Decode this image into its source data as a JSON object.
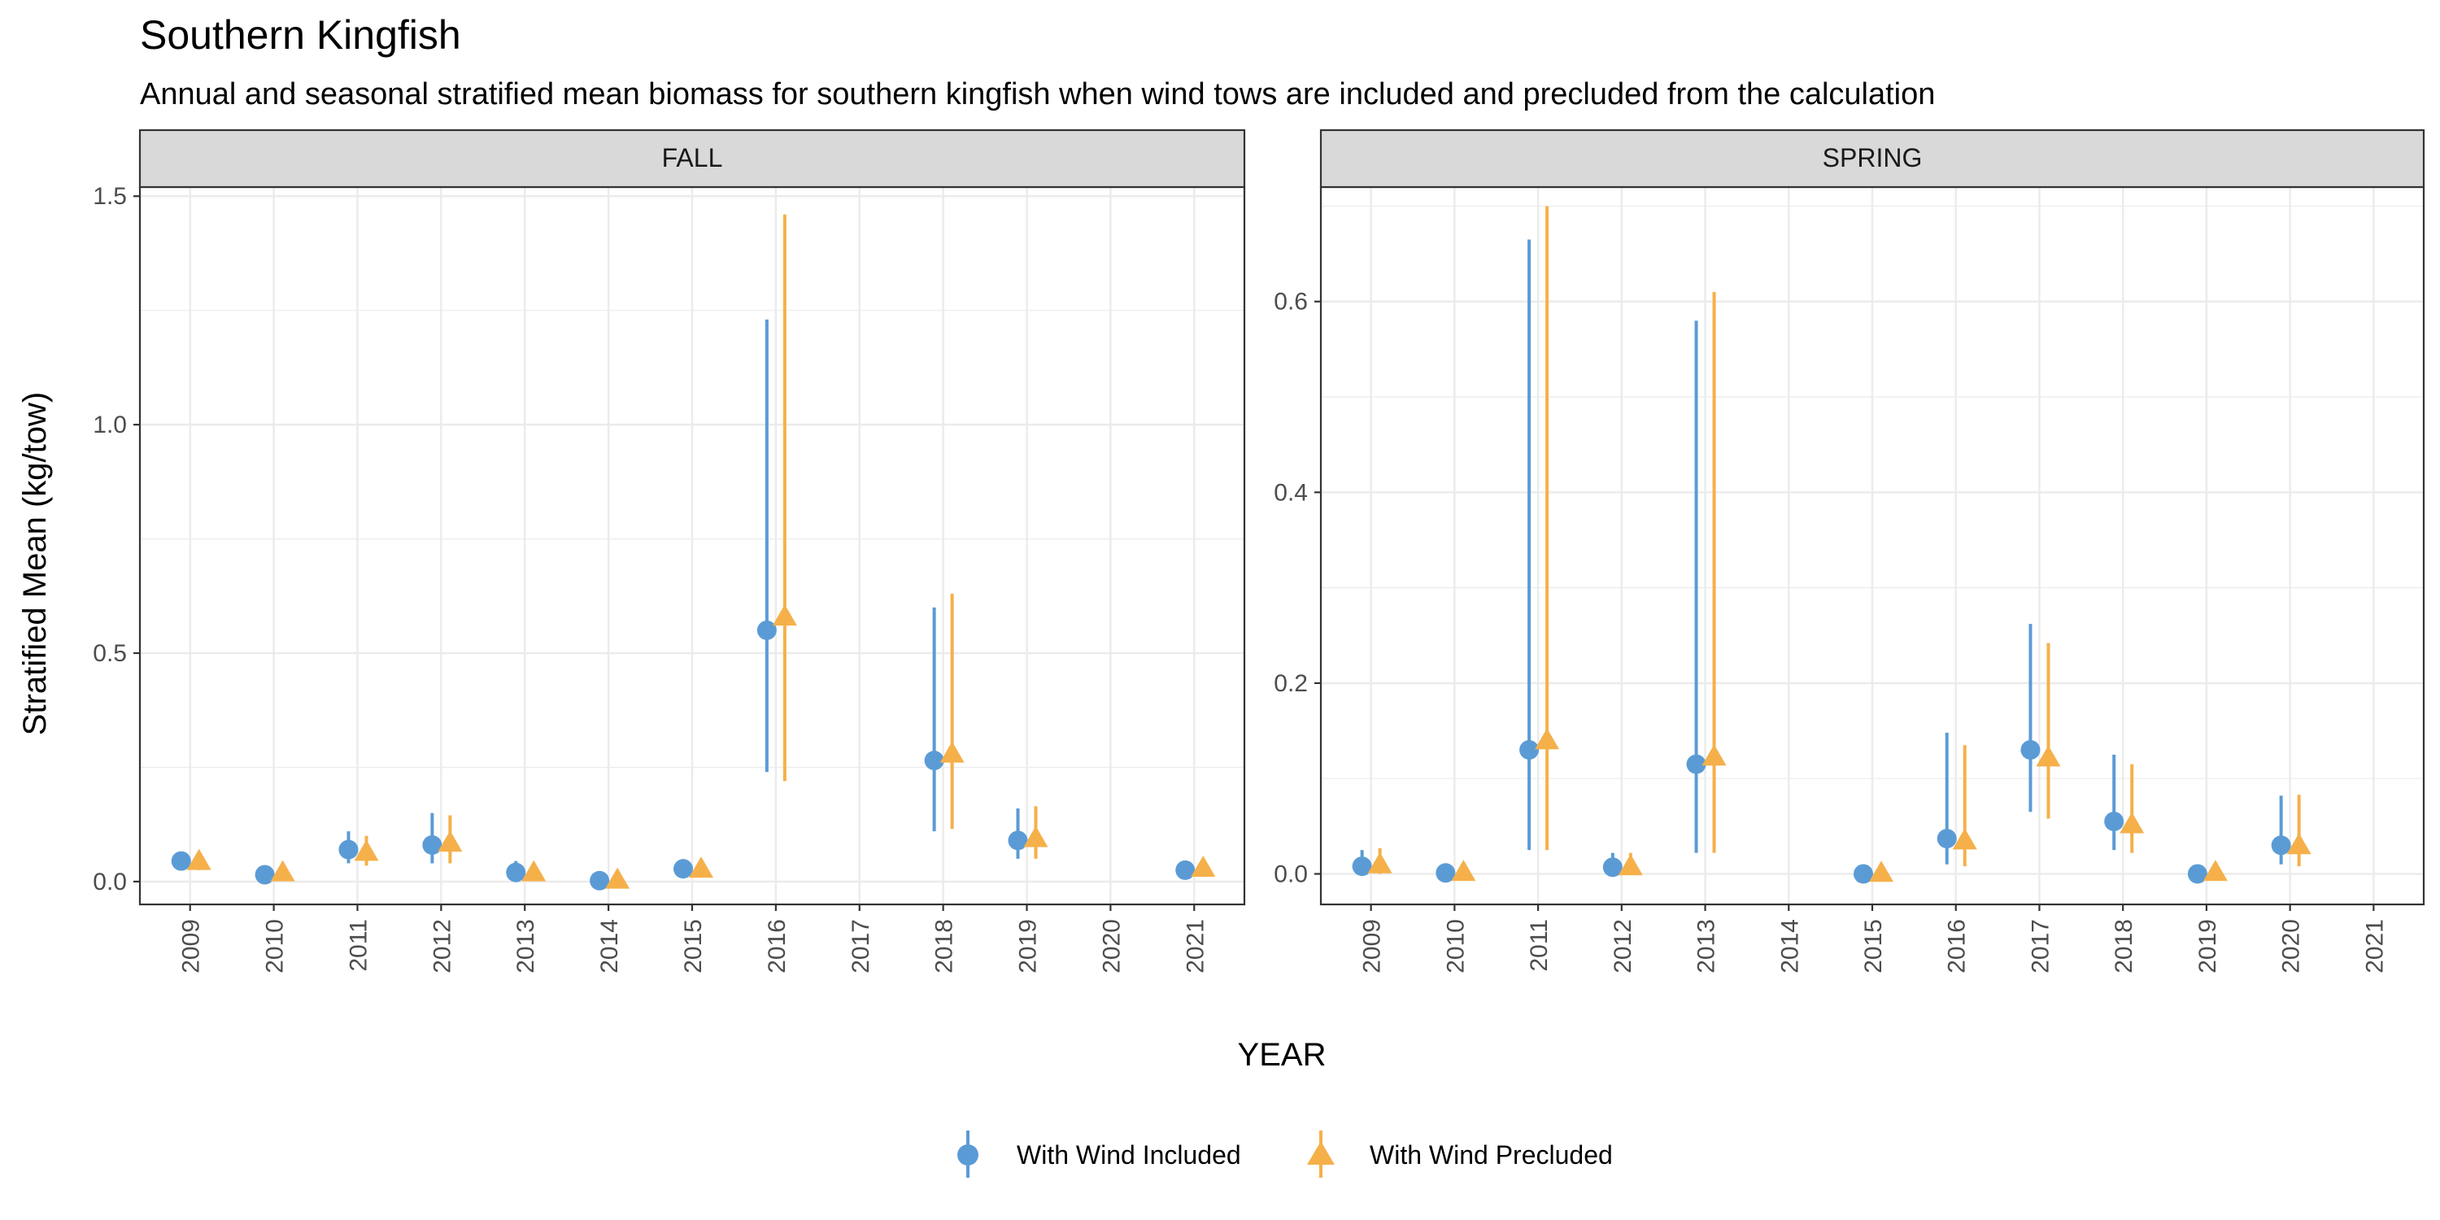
{
  "chart_data": {
    "type": "scatter",
    "title": "Southern Kingfish",
    "subtitle": "Annual and seasonal stratified mean biomass for southern kingfish when wind tows are included and precluded from the calculation",
    "xlabel": "YEAR",
    "ylabel": "Stratified Mean (kg/tow)",
    "grid": true,
    "legend_position": "bottom",
    "colors": {
      "included": "#5b9bd5",
      "precluded": "#f5b04a"
    },
    "categories": [
      "2009",
      "2010",
      "2011",
      "2012",
      "2013",
      "2014",
      "2015",
      "2016",
      "2017",
      "2018",
      "2019",
      "2020",
      "2021"
    ],
    "series_names": [
      "With Wind Included",
      "With Wind Precluded"
    ],
    "panels": [
      {
        "label": "FALL",
        "ylim": [
          -0.05,
          1.52
        ],
        "yticks": [
          0.0,
          0.5,
          1.0,
          1.5
        ],
        "ytick_labels": [
          "0.0",
          "0.5",
          "1.0",
          "1.5"
        ],
        "series": [
          {
            "name": "With Wind Included",
            "points": [
              {
                "x": "2009",
                "y": 0.045,
                "lo": 0.025,
                "hi": 0.065
              },
              {
                "x": "2010",
                "y": 0.015,
                "lo": 0.008,
                "hi": 0.025
              },
              {
                "x": "2011",
                "y": 0.07,
                "lo": 0.04,
                "hi": 0.11
              },
              {
                "x": "2012",
                "y": 0.08,
                "lo": 0.04,
                "hi": 0.15
              },
              {
                "x": "2013",
                "y": 0.02,
                "lo": 0.008,
                "hi": 0.045
              },
              {
                "x": "2014",
                "y": 0.002,
                "lo": 0.0,
                "hi": 0.006
              },
              {
                "x": "2015",
                "y": 0.028,
                "lo": 0.018,
                "hi": 0.04
              },
              {
                "x": "2016",
                "y": 0.55,
                "lo": 0.24,
                "hi": 1.23
              },
              {
                "x": "2018",
                "y": 0.265,
                "lo": 0.11,
                "hi": 0.6
              },
              {
                "x": "2019",
                "y": 0.09,
                "lo": 0.05,
                "hi": 0.16
              },
              {
                "x": "2021",
                "y": 0.025,
                "lo": 0.02,
                "hi": 0.03
              }
            ]
          },
          {
            "name": "With Wind Precluded",
            "points": [
              {
                "x": "2009",
                "y": 0.045,
                "lo": 0.025,
                "hi": 0.065
              },
              {
                "x": "2010",
                "y": 0.02,
                "lo": 0.008,
                "hi": 0.03
              },
              {
                "x": "2011",
                "y": 0.065,
                "lo": 0.035,
                "hi": 0.1
              },
              {
                "x": "2012",
                "y": 0.085,
                "lo": 0.04,
                "hi": 0.145
              },
              {
                "x": "2013",
                "y": 0.02,
                "lo": 0.008,
                "hi": 0.04
              },
              {
                "x": "2014",
                "y": 0.004,
                "lo": 0.0,
                "hi": 0.008
              },
              {
                "x": "2015",
                "y": 0.028,
                "lo": 0.018,
                "hi": 0.04
              },
              {
                "x": "2016",
                "y": 0.58,
                "lo": 0.22,
                "hi": 1.46
              },
              {
                "x": "2018",
                "y": 0.28,
                "lo": 0.115,
                "hi": 0.63
              },
              {
                "x": "2019",
                "y": 0.095,
                "lo": 0.05,
                "hi": 0.165
              },
              {
                "x": "2021",
                "y": 0.03,
                "lo": 0.025,
                "hi": 0.035
              }
            ]
          }
        ]
      },
      {
        "label": "SPRING",
        "ylim": [
          -0.032,
          0.72
        ],
        "yticks": [
          0.0,
          0.2,
          0.4,
          0.6
        ],
        "ytick_labels": [
          "0.0",
          "0.2",
          "0.4",
          "0.6"
        ],
        "series": [
          {
            "name": "With Wind Included",
            "points": [
              {
                "x": "2009",
                "y": 0.008,
                "lo": 0.0,
                "hi": 0.025
              },
              {
                "x": "2010",
                "y": 0.001,
                "lo": 0.0,
                "hi": 0.004
              },
              {
                "x": "2011",
                "y": 0.13,
                "lo": 0.025,
                "hi": 0.665
              },
              {
                "x": "2012",
                "y": 0.007,
                "lo": 0.0,
                "hi": 0.022
              },
              {
                "x": "2013",
                "y": 0.115,
                "lo": 0.022,
                "hi": 0.58
              },
              {
                "x": "2015",
                "y": 0.0,
                "lo": 0.0,
                "hi": 0.003
              },
              {
                "x": "2016",
                "y": 0.037,
                "lo": 0.01,
                "hi": 0.148
              },
              {
                "x": "2017",
                "y": 0.13,
                "lo": 0.065,
                "hi": 0.262
              },
              {
                "x": "2018",
                "y": 0.055,
                "lo": 0.025,
                "hi": 0.125
              },
              {
                "x": "2019",
                "y": 0.0,
                "lo": 0.0,
                "hi": 0.003
              },
              {
                "x": "2020",
                "y": 0.03,
                "lo": 0.01,
                "hi": 0.082
              }
            ]
          },
          {
            "name": "With Wind Precluded",
            "points": [
              {
                "x": "2009",
                "y": 0.01,
                "lo": 0.0,
                "hi": 0.027
              },
              {
                "x": "2010",
                "y": 0.002,
                "lo": 0.0,
                "hi": 0.005
              },
              {
                "x": "2011",
                "y": 0.14,
                "lo": 0.025,
                "hi": 0.7
              },
              {
                "x": "2012",
                "y": 0.008,
                "lo": 0.0,
                "hi": 0.022
              },
              {
                "x": "2013",
                "y": 0.123,
                "lo": 0.022,
                "hi": 0.61
              },
              {
                "x": "2015",
                "y": 0.001,
                "lo": 0.0,
                "hi": 0.003
              },
              {
                "x": "2016",
                "y": 0.035,
                "lo": 0.008,
                "hi": 0.135
              },
              {
                "x": "2017",
                "y": 0.122,
                "lo": 0.058,
                "hi": 0.242
              },
              {
                "x": "2018",
                "y": 0.052,
                "lo": 0.022,
                "hi": 0.115
              },
              {
                "x": "2019",
                "y": 0.002,
                "lo": 0.0,
                "hi": 0.004
              },
              {
                "x": "2020",
                "y": 0.03,
                "lo": 0.008,
                "hi": 0.083
              }
            ]
          }
        ]
      }
    ]
  }
}
